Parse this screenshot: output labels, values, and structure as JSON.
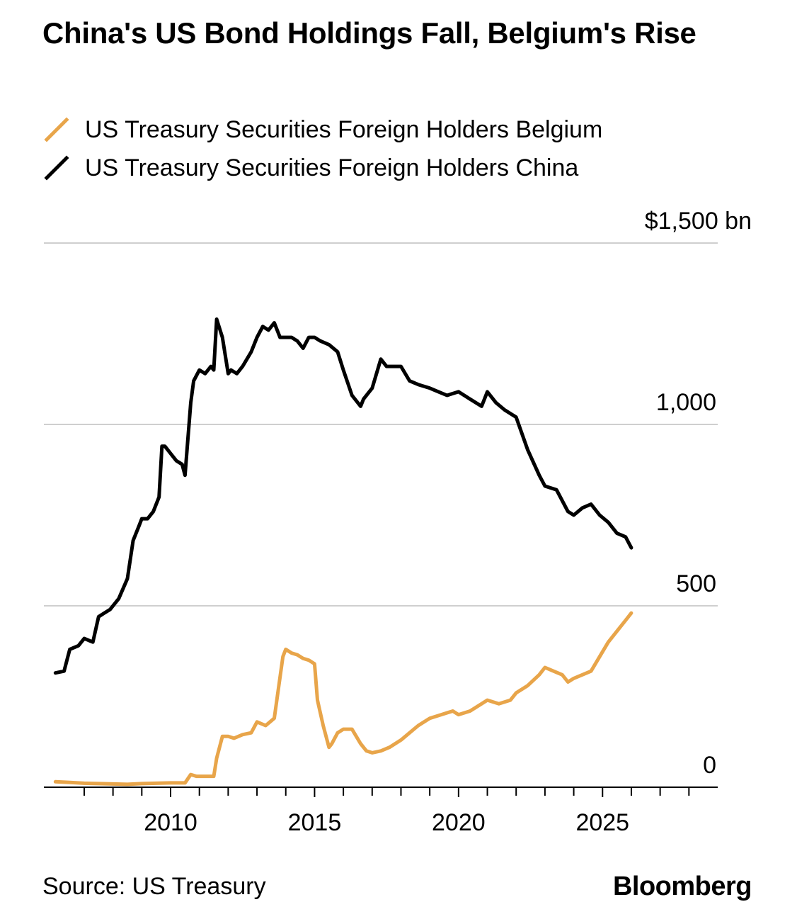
{
  "page": {
    "title": "China's US Bond Holdings Fall, Belgium's Rise",
    "source": "Source: US Treasury",
    "brand": "Bloomberg"
  },
  "chart_data": {
    "type": "line",
    "title": "China's US Bond Holdings Fall, Belgium's Rise",
    "xlabel": "",
    "ylabel": "",
    "xlim": [
      2005.6,
      2029.0
    ],
    "ylim": [
      0,
      1500
    ],
    "y_ticks": [
      0,
      500,
      1000,
      1500
    ],
    "y_tick_labels": [
      "0",
      "500",
      "1,000",
      "$1,500 bn"
    ],
    "x_ticks": [
      2010,
      2015,
      2020,
      2025
    ],
    "x_tick_labels": [
      "2010",
      "2015",
      "2020",
      "2025"
    ],
    "legend_position": "top-left",
    "grid": true,
    "series": [
      {
        "name": "US Treasury Securities Foreign Holders Belgium",
        "color": "#e8a54a",
        "x": [
          2006.0,
          2006.5,
          2007.0,
          2007.5,
          2008.0,
          2008.5,
          2009.0,
          2009.5,
          2010.0,
          2010.5,
          2010.7,
          2010.9,
          2011.0,
          2011.5,
          2011.6,
          2011.8,
          2012.0,
          2012.2,
          2012.5,
          2012.8,
          2013.0,
          2013.3,
          2013.6,
          2013.9,
          2014.0,
          2014.2,
          2014.4,
          2014.6,
          2014.8,
          2015.0,
          2015.1,
          2015.3,
          2015.5,
          2015.6,
          2015.8,
          2016.0,
          2016.3,
          2016.6,
          2016.8,
          2017.0,
          2017.3,
          2017.6,
          2018.0,
          2018.3,
          2018.6,
          2019.0,
          2019.4,
          2019.8,
          2020.0,
          2020.4,
          2020.8,
          2021.0,
          2021.4,
          2021.8,
          2022.0,
          2022.4,
          2022.8,
          2023.0,
          2023.3,
          2023.6,
          2023.8,
          2024.0,
          2024.3,
          2024.6,
          2024.9,
          2025.2,
          2025.5,
          2025.8,
          2026.0
        ],
        "y": [
          15,
          13,
          11,
          10,
          9,
          8,
          10,
          11,
          12,
          12,
          35,
          30,
          30,
          30,
          80,
          140,
          140,
          135,
          145,
          150,
          180,
          170,
          190,
          360,
          380,
          370,
          365,
          355,
          350,
          340,
          240,
          170,
          110,
          120,
          150,
          160,
          160,
          120,
          100,
          95,
          100,
          110,
          130,
          150,
          170,
          190,
          200,
          210,
          200,
          210,
          230,
          240,
          230,
          240,
          260,
          280,
          310,
          330,
          320,
          310,
          290,
          300,
          310,
          320,
          360,
          400,
          430,
          460,
          480
        ]
      },
      {
        "name": "US Treasury Securities Foreign Holders China",
        "color": "#000000",
        "x": [
          2006.0,
          2006.3,
          2006.5,
          2006.8,
          2007.0,
          2007.3,
          2007.5,
          2007.7,
          2007.9,
          2008.2,
          2008.5,
          2008.7,
          2008.9,
          2009.0,
          2009.2,
          2009.4,
          2009.6,
          2009.7,
          2009.8,
          2010.0,
          2010.2,
          2010.4,
          2010.5,
          2010.7,
          2010.8,
          2011.0,
          2011.2,
          2011.4,
          2011.5,
          2011.6,
          2011.8,
          2012.0,
          2012.1,
          2012.3,
          2012.5,
          2012.8,
          2013.0,
          2013.2,
          2013.4,
          2013.6,
          2013.8,
          2014.0,
          2014.2,
          2014.4,
          2014.6,
          2014.8,
          2015.0,
          2015.2,
          2015.5,
          2015.8,
          2016.0,
          2016.3,
          2016.6,
          2016.7,
          2016.9,
          2017.0,
          2017.3,
          2017.5,
          2017.7,
          2018.0,
          2018.3,
          2018.6,
          2019.0,
          2019.3,
          2019.6,
          2020.0,
          2020.4,
          2020.8,
          2021.0,
          2021.3,
          2021.6,
          2022.0,
          2022.4,
          2022.8,
          2023.0,
          2023.4,
          2023.8,
          2024.0,
          2024.3,
          2024.6,
          2024.9,
          2025.2,
          2025.5,
          2025.8,
          2026.0
        ],
        "y": [
          315,
          320,
          380,
          390,
          410,
          400,
          470,
          480,
          490,
          520,
          575,
          680,
          720,
          740,
          740,
          760,
          800,
          940,
          940,
          920,
          900,
          890,
          860,
          1060,
          1120,
          1150,
          1140,
          1160,
          1150,
          1290,
          1240,
          1140,
          1150,
          1140,
          1160,
          1200,
          1240,
          1270,
          1260,
          1280,
          1240,
          1240,
          1240,
          1230,
          1210,
          1240,
          1240,
          1230,
          1220,
          1200,
          1150,
          1080,
          1050,
          1070,
          1090,
          1100,
          1180,
          1160,
          1160,
          1160,
          1120,
          1110,
          1100,
          1090,
          1080,
          1090,
          1070,
          1050,
          1090,
          1060,
          1040,
          1020,
          930,
          860,
          830,
          820,
          760,
          750,
          770,
          780,
          750,
          730,
          700,
          690,
          660
        ]
      }
    ]
  }
}
